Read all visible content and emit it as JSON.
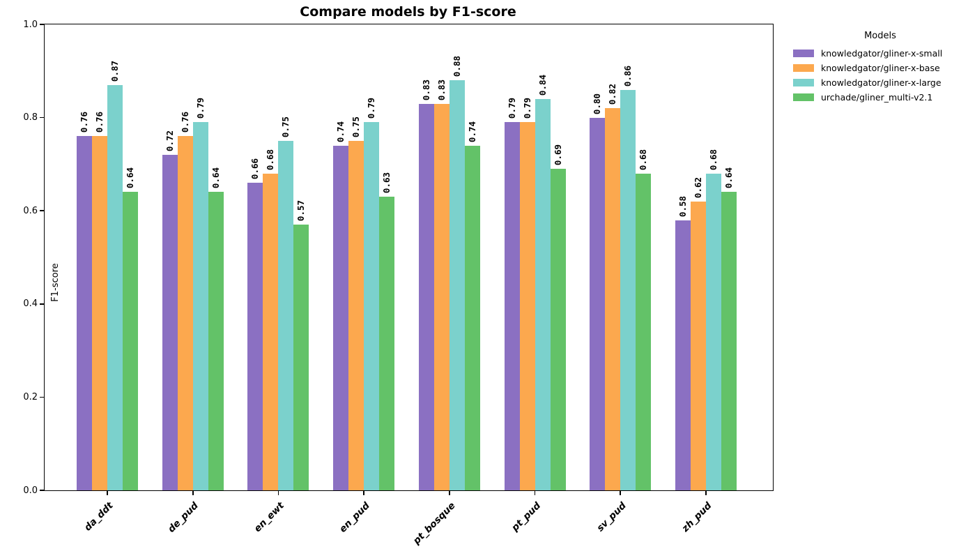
{
  "chart_data": {
    "type": "bar",
    "title": "Compare models by F1-score",
    "xlabel": "",
    "ylabel": "F1-score",
    "ylim": [
      0.0,
      1.0
    ],
    "yticks": [
      0.0,
      0.2,
      0.4,
      0.6,
      0.8,
      1.0
    ],
    "ytick_labels": [
      "0.0",
      "0.2",
      "0.4",
      "0.6",
      "0.8",
      "1.0"
    ],
    "grid": false,
    "bar_value_labels": true,
    "bar_value_label_format": "%.2f",
    "bar_value_label_rotation_deg": 90,
    "xtick_label_rotation_deg": 45,
    "legend_title": "Models",
    "legend_position": "outside-upper-right",
    "categories": [
      "da_ddt",
      "de_pud",
      "en_ewt",
      "en_pud",
      "pt_bosque",
      "pt_pud",
      "sv_pud",
      "zh_pud"
    ],
    "series": [
      {
        "name": "knowledgator/gliner-x-small",
        "color": "#8b70c2",
        "values": [
          0.76,
          0.72,
          0.66,
          0.74,
          0.83,
          0.79,
          0.8,
          0.58
        ]
      },
      {
        "name": "knowledgator/gliner-x-base",
        "color": "#fca84e",
        "values": [
          0.76,
          0.76,
          0.68,
          0.75,
          0.83,
          0.79,
          0.82,
          0.62
        ]
      },
      {
        "name": "knowledgator/gliner-x-large",
        "color": "#7bd1cc",
        "values": [
          0.87,
          0.79,
          0.75,
          0.79,
          0.88,
          0.84,
          0.86,
          0.68
        ]
      },
      {
        "name": "urchade/gliner_multi-v2.1",
        "color": "#63c268",
        "values": [
          0.64,
          0.64,
          0.57,
          0.63,
          0.74,
          0.69,
          0.68,
          0.64
        ]
      }
    ]
  }
}
